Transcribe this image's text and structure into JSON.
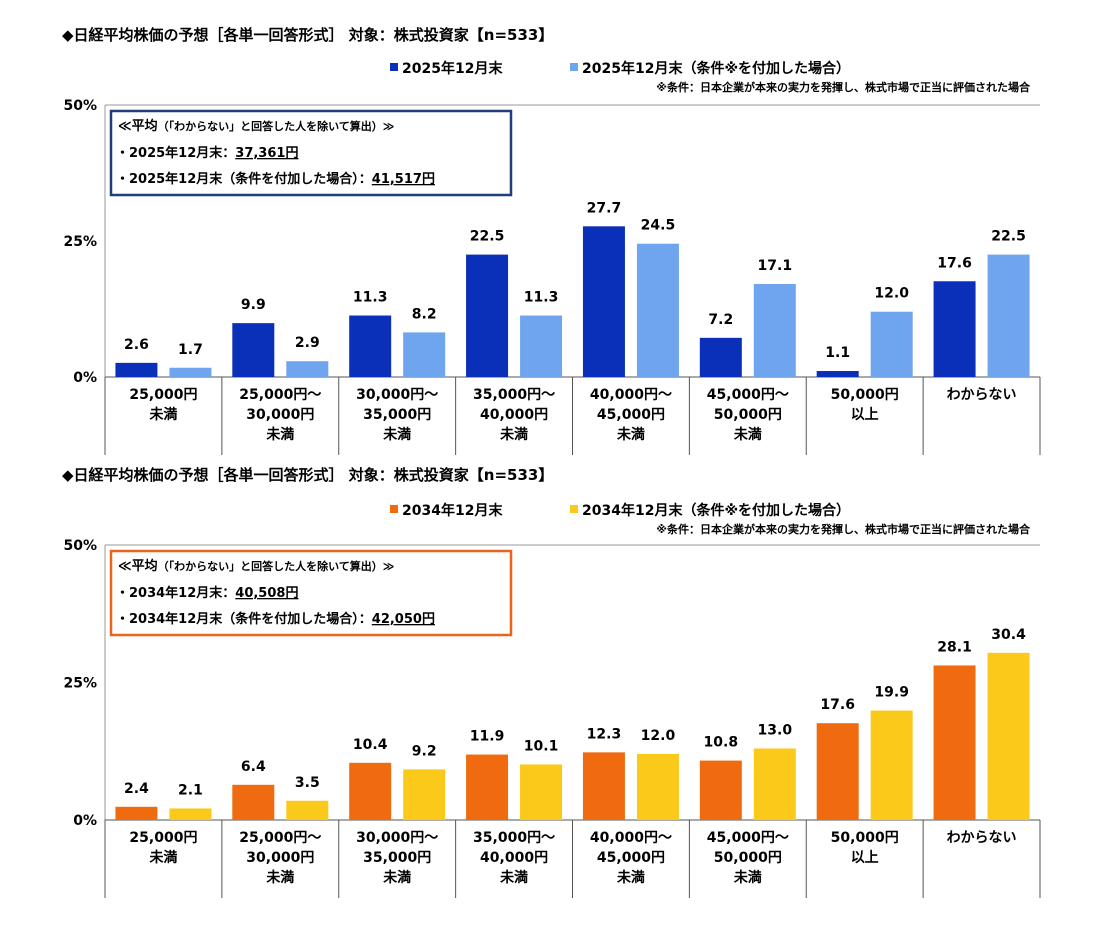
{
  "chart_data": [
    {
      "type": "bar",
      "title": "◆日経平均株価の予想［各単一回答形式］ 対象：株式投資家【n=533】",
      "note": "※条件：日本企業が本来の実力を発揮し、株式市場で正当に評価された場合",
      "categories": [
        [
          "25,000円",
          "未満"
        ],
        [
          "25,000円～",
          "30,000円",
          "未満"
        ],
        [
          "30,000円～",
          "35,000円",
          "未満"
        ],
        [
          "35,000円～",
          "40,000円",
          "未満"
        ],
        [
          "40,000円～",
          "45,000円",
          "未満"
        ],
        [
          "45,000円～",
          "50,000円",
          "未満"
        ],
        [
          "50,000円",
          "以上"
        ],
        [
          "わからない"
        ]
      ],
      "series": [
        {
          "name": "2025年12月末",
          "color": "#0a2fb8",
          "values": [
            2.6,
            9.9,
            11.3,
            22.5,
            27.7,
            7.2,
            1.1,
            17.6
          ]
        },
        {
          "name": "2025年12月末（条件※を付加した場合）",
          "color": "#6fa4ee",
          "values": [
            1.7,
            2.9,
            8.2,
            11.3,
            24.5,
            17.1,
            12.0,
            22.5
          ]
        }
      ],
      "yticks": [
        "50%",
        "25%",
        "0%"
      ],
      "ylim": [
        0,
        50
      ],
      "box": {
        "border_color": "#1f3f78",
        "heading": "≪平均",
        "heading_small": "（「わからない」と回答した人を除いて算出）≫",
        "line1_label": "・2025年12月末：",
        "line1_value": "37,361円",
        "line2_label": "・2025年12月末（条件を付加した場合）：",
        "line2_value": "41,517円"
      }
    },
    {
      "type": "bar",
      "title": "◆日経平均株価の予想［各単一回答形式］ 対象：株式投資家【n=533】",
      "note": "※条件：日本企業が本来の実力を発揮し、株式市場で正当に評価された場合",
      "categories": [
        [
          "25,000円",
          "未満"
        ],
        [
          "25,000円～",
          "30,000円",
          "未満"
        ],
        [
          "30,000円～",
          "35,000円",
          "未満"
        ],
        [
          "35,000円～",
          "40,000円",
          "未満"
        ],
        [
          "40,000円～",
          "45,000円",
          "未満"
        ],
        [
          "45,000円～",
          "50,000円",
          "未満"
        ],
        [
          "50,000円",
          "以上"
        ],
        [
          "わからない"
        ]
      ],
      "series": [
        {
          "name": "2034年12月末",
          "color": "#f06a0f",
          "values": [
            2.4,
            6.4,
            10.4,
            11.9,
            12.3,
            10.8,
            17.6,
            28.1
          ]
        },
        {
          "name": "2034年12月末（条件※を付加した場合）",
          "color": "#fbc91a",
          "values": [
            2.1,
            3.5,
            9.2,
            10.1,
            12.0,
            13.0,
            19.9,
            30.4
          ]
        }
      ],
      "yticks": [
        "50%",
        "25%",
        "0%"
      ],
      "ylim": [
        0,
        50
      ],
      "box": {
        "border_color": "#e8651a",
        "heading": "≪平均",
        "heading_small": "（「わからない」と回答した人を除いて算出）≫",
        "line1_label": "・2034年12月末：",
        "line1_value": "40,508円",
        "line2_label": "・2034年12月末（条件を付加した場合）：",
        "line2_value": "42,050円"
      }
    }
  ]
}
